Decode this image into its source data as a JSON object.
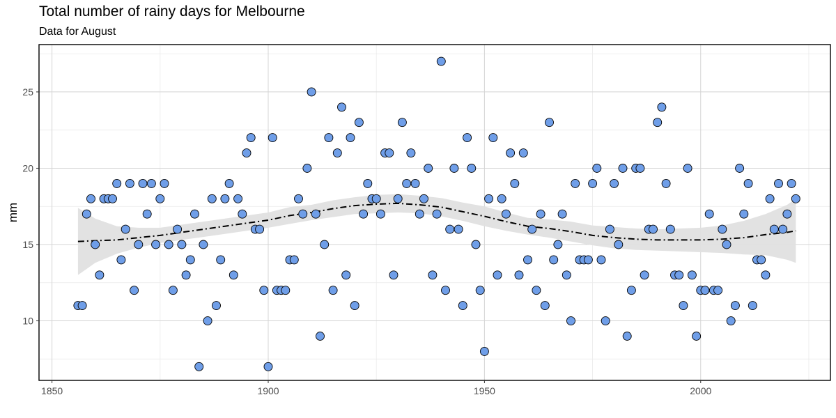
{
  "chart_data": {
    "type": "scatter",
    "title": "Total number of rainy days for Melbourne",
    "subtitle": "Data for August",
    "xlabel": "",
    "ylabel": "mm",
    "xlim": [
      1847,
      2030
    ],
    "ylim": [
      6.1,
      28.1
    ],
    "x_ticks": [
      1850,
      1900,
      1950,
      2000
    ],
    "y_ticks": [
      10,
      15,
      20,
      25
    ],
    "grid": true,
    "colors": {
      "point_fill": "#6F9EE8",
      "point_stroke": "#000000",
      "ribbon": "#E0E0E0",
      "trend": "#000000"
    },
    "x": [
      1856,
      1857,
      1858,
      1859,
      1860,
      1861,
      1862,
      1863,
      1864,
      1865,
      1866,
      1867,
      1868,
      1869,
      1870,
      1871,
      1872,
      1873,
      1874,
      1875,
      1876,
      1877,
      1878,
      1879,
      1880,
      1881,
      1882,
      1883,
      1884,
      1885,
      1886,
      1887,
      1888,
      1889,
      1890,
      1891,
      1892,
      1893,
      1894,
      1895,
      1896,
      1897,
      1898,
      1899,
      1900,
      1901,
      1902,
      1903,
      1904,
      1905,
      1906,
      1907,
      1908,
      1909,
      1910,
      1911,
      1912,
      1913,
      1914,
      1915,
      1916,
      1917,
      1918,
      1919,
      1920,
      1921,
      1922,
      1923,
      1924,
      1925,
      1926,
      1927,
      1928,
      1929,
      1930,
      1931,
      1932,
      1933,
      1934,
      1935,
      1936,
      1937,
      1938,
      1939,
      1940,
      1941,
      1942,
      1943,
      1944,
      1945,
      1946,
      1947,
      1948,
      1949,
      1950,
      1951,
      1952,
      1953,
      1954,
      1955,
      1956,
      1957,
      1958,
      1959,
      1960,
      1961,
      1962,
      1963,
      1964,
      1965,
      1966,
      1967,
      1968,
      1969,
      1970,
      1971,
      1972,
      1973,
      1974,
      1975,
      1976,
      1977,
      1978,
      1979,
      1980,
      1981,
      1982,
      1983,
      1984,
      1985,
      1986,
      1987,
      1988,
      1989,
      1990,
      1991,
      1992,
      1993,
      1994,
      1995,
      1996,
      1997,
      1998,
      1999,
      2000,
      2001,
      2002,
      2003,
      2004,
      2005,
      2006,
      2007,
      2008,
      2009,
      2010,
      2011,
      2012,
      2013,
      2014,
      2015,
      2016,
      2017,
      2018,
      2019,
      2020,
      2021,
      2022
    ],
    "y": [
      11,
      11,
      17,
      18,
      15,
      13,
      18,
      18,
      18,
      19,
      14,
      16,
      19,
      12,
      15,
      19,
      17,
      19,
      15,
      18,
      19,
      15,
      12,
      16,
      15,
      13,
      14,
      17,
      7,
      15,
      10,
      18,
      11,
      14,
      18,
      19,
      13,
      18,
      17,
      21,
      22,
      16,
      16,
      12,
      7,
      22,
      12,
      12,
      12,
      14,
      14,
      18,
      17,
      20,
      25,
      17,
      9,
      15,
      22,
      12,
      21,
      24,
      13,
      22,
      11,
      23,
      17,
      19,
      18,
      18,
      17,
      21,
      21,
      13,
      18,
      23,
      19,
      21,
      19,
      17,
      18,
      20,
      13,
      17,
      27,
      12,
      16,
      20,
      16,
      11,
      22,
      20,
      15,
      12,
      8,
      18,
      22,
      13,
      18,
      17,
      21,
      19,
      13,
      21,
      14,
      16,
      12,
      17,
      11,
      23,
      14,
      15,
      17,
      13,
      10,
      19,
      14,
      14,
      14,
      19,
      20,
      14,
      10,
      16,
      19,
      15,
      20,
      9,
      12,
      20,
      20,
      13,
      16,
      16,
      23,
      24,
      19,
      16,
      13,
      13,
      11,
      20,
      13,
      9,
      12,
      12,
      17,
      12,
      12,
      16,
      15,
      10,
      11,
      20,
      17,
      19,
      11,
      14,
      14,
      13,
      18,
      16,
      19,
      16,
      17,
      19,
      18
    ],
    "trend": {
      "x": [
        1856,
        1860,
        1865,
        1870,
        1875,
        1880,
        1885,
        1890,
        1895,
        1900,
        1905,
        1910,
        1915,
        1920,
        1925,
        1930,
        1935,
        1940,
        1945,
        1950,
        1955,
        1960,
        1965,
        1970,
        1975,
        1980,
        1985,
        1990,
        1995,
        2000,
        2005,
        2010,
        2015,
        2020,
        2022
      ],
      "y": [
        15.2,
        15.25,
        15.3,
        15.45,
        15.6,
        15.8,
        16.0,
        16.2,
        16.4,
        16.6,
        16.9,
        17.1,
        17.35,
        17.55,
        17.65,
        17.7,
        17.6,
        17.45,
        17.15,
        16.85,
        16.5,
        16.2,
        16.05,
        15.85,
        15.6,
        15.45,
        15.35,
        15.3,
        15.3,
        15.3,
        15.35,
        15.45,
        15.65,
        15.8,
        15.9
      ],
      "lower": [
        13.0,
        13.8,
        14.4,
        14.8,
        15.1,
        15.3,
        15.5,
        15.7,
        15.9,
        16.1,
        16.35,
        16.6,
        16.8,
        17.0,
        17.05,
        17.1,
        17.05,
        16.85,
        16.55,
        16.2,
        15.9,
        15.65,
        15.45,
        15.2,
        14.95,
        14.75,
        14.65,
        14.6,
        14.55,
        14.5,
        14.45,
        14.35,
        14.3,
        14.0,
        13.8
      ],
      "upper": [
        17.4,
        16.7,
        16.2,
        16.1,
        16.1,
        16.3,
        16.5,
        16.7,
        16.9,
        17.1,
        17.45,
        17.6,
        17.9,
        18.1,
        18.25,
        18.3,
        18.2,
        18.05,
        17.75,
        17.5,
        17.1,
        16.75,
        16.65,
        16.5,
        16.25,
        16.15,
        16.05,
        16.0,
        16.05,
        16.1,
        16.25,
        16.55,
        17.0,
        17.6,
        18.0
      ]
    }
  }
}
